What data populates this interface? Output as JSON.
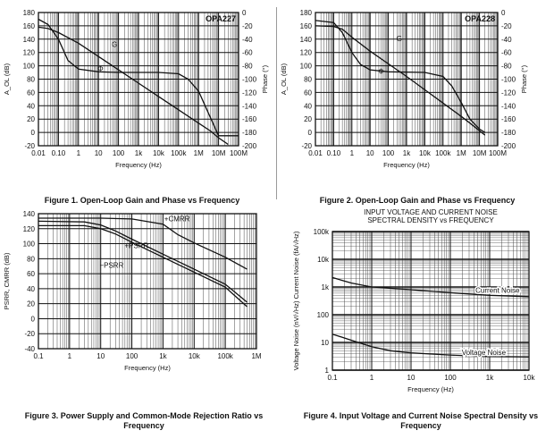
{
  "chart_data": [
    {
      "id": "fig1",
      "type": "line",
      "title": "OPA227",
      "caption": "Figure 1. Open-Loop Gain and Phase vs Frequency",
      "xlabel": "Frequency (Hz)",
      "ylabel": "A_OL (dB)",
      "ylabel_right": "Phase (°)",
      "xscale": "log",
      "xlim": [
        0.01,
        100000000
      ],
      "ylim": [
        -20,
        180
      ],
      "ylim_right": [
        -200,
        0
      ],
      "xticks": [
        {
          "v": 0.01,
          "label": "0.01"
        },
        {
          "v": 0.1,
          "label": "0.10"
        },
        {
          "v": 1,
          "label": "1"
        },
        {
          "v": 10,
          "label": "10"
        },
        {
          "v": 100,
          "label": "100"
        },
        {
          "v": 1000,
          "label": "1k"
        },
        {
          "v": 10000,
          "label": "10k"
        },
        {
          "v": 100000,
          "label": "100k"
        },
        {
          "v": 1000000,
          "label": "1M"
        },
        {
          "v": 10000000,
          "label": "10M"
        },
        {
          "v": 100000000,
          "label": "100M"
        }
      ],
      "yticks": [
        -20,
        0,
        20,
        40,
        60,
        80,
        100,
        120,
        140,
        160,
        180
      ],
      "yticks_right": [
        0,
        -20,
        -40,
        -60,
        -80,
        -100,
        -120,
        -140,
        -160,
        -180,
        -200
      ],
      "series": [
        {
          "name": "G",
          "axis": "left",
          "points": [
            [
              0.01,
              158
            ],
            [
              0.03,
              156
            ],
            [
              0.1,
              150
            ],
            [
              1,
              134
            ],
            [
              10,
              114
            ],
            [
              100,
              94
            ],
            [
              1000,
              74
            ],
            [
              10000,
              54
            ],
            [
              100000,
              34
            ],
            [
              1000000,
              14
            ],
            [
              4000000,
              2
            ],
            [
              10000000,
              -8
            ],
            [
              30000000,
              -18
            ]
          ]
        },
        {
          "name": "Φ",
          "axis": "right",
          "points": [
            [
              0.01,
              -10
            ],
            [
              0.03,
              -18
            ],
            [
              0.1,
              -40
            ],
            [
              0.3,
              -72
            ],
            [
              1,
              -85
            ],
            [
              10,
              -89
            ],
            [
              100,
              -90
            ],
            [
              10000,
              -90
            ],
            [
              100000,
              -92
            ],
            [
              300000,
              -100
            ],
            [
              1000000,
              -118
            ],
            [
              3000000,
              -150
            ],
            [
              10000000,
              -185
            ],
            [
              100000000,
              -185
            ]
          ]
        }
      ]
    },
    {
      "id": "fig2",
      "type": "line",
      "title": "OPA228",
      "caption": "Figure 2. Open-Loop Gain and Phase vs Frequency",
      "xlabel": "Frequency (Hz)",
      "ylabel": "A_OL (dB)",
      "ylabel_right": "Phase (°)",
      "xscale": "log",
      "xlim": [
        0.01,
        100000000
      ],
      "ylim": [
        -20,
        180
      ],
      "ylim_right": [
        -200,
        0
      ],
      "xticks": [
        {
          "v": 0.01,
          "label": "0.01"
        },
        {
          "v": 0.1,
          "label": "0.10"
        },
        {
          "v": 1,
          "label": "1"
        },
        {
          "v": 10,
          "label": "10"
        },
        {
          "v": 100,
          "label": "100"
        },
        {
          "v": 1000,
          "label": "1k"
        },
        {
          "v": 10000,
          "label": "10k"
        },
        {
          "v": 100000,
          "label": "100k"
        },
        {
          "v": 1000000,
          "label": "1M"
        },
        {
          "v": 10000000,
          "label": "10M"
        },
        {
          "v": 100000000,
          "label": "100M"
        }
      ],
      "yticks": [
        -20,
        0,
        20,
        40,
        60,
        80,
        100,
        120,
        140,
        160,
        180
      ],
      "yticks_right": [
        0,
        -20,
        -40,
        -60,
        -80,
        -100,
        -120,
        -140,
        -160,
        -180,
        -200
      ],
      "series": [
        {
          "name": "G",
          "axis": "left",
          "points": [
            [
              0.01,
              160
            ],
            [
              0.1,
              159
            ],
            [
              0.3,
              155
            ],
            [
              1,
              143
            ],
            [
              10,
              122
            ],
            [
              100,
              103
            ],
            [
              1000,
              84
            ],
            [
              10000,
              64
            ],
            [
              100000,
              44
            ],
            [
              1000000,
              24
            ],
            [
              3000000,
              14
            ],
            [
              20000000,
              -4
            ]
          ]
        },
        {
          "name": "Φ",
          "axis": "right",
          "points": [
            [
              0.01,
              -12
            ],
            [
              0.1,
              -15
            ],
            [
              0.3,
              -30
            ],
            [
              1,
              -60
            ],
            [
              3,
              -78
            ],
            [
              10,
              -86
            ],
            [
              100,
              -89
            ],
            [
              10000,
              -90
            ],
            [
              100000,
              -96
            ],
            [
              300000,
              -110
            ],
            [
              1000000,
              -135
            ],
            [
              3000000,
              -160
            ],
            [
              10000000,
              -175
            ],
            [
              20000000,
              -180
            ]
          ]
        }
      ]
    },
    {
      "id": "fig3",
      "type": "line",
      "caption": "Figure 3. Power Supply and Common-Mode Rejection Ratio vs Frequency",
      "xlabel": "Frequency (Hz)",
      "ylabel": "PSRR, CMRR (dB)",
      "xscale": "log",
      "xlim": [
        0.1,
        1000000
      ],
      "ylim": [
        -40,
        140
      ],
      "xticks": [
        {
          "v": 0.1,
          "label": "0.1"
        },
        {
          "v": 1,
          "label": "1"
        },
        {
          "v": 10,
          "label": "10"
        },
        {
          "v": 100,
          "label": "100"
        },
        {
          "v": 1000,
          "label": "1k"
        },
        {
          "v": 10000,
          "label": "10k"
        },
        {
          "v": 100000,
          "label": "100k"
        },
        {
          "v": 1000000,
          "label": "1M"
        }
      ],
      "yticks": [
        -40,
        -20,
        0,
        20,
        40,
        60,
        80,
        100,
        120,
        140
      ],
      "series": [
        {
          "name": "+CMRR",
          "points": [
            [
              0.1,
              134
            ],
            [
              1,
              134
            ],
            [
              10,
              134
            ],
            [
              100,
              133
            ],
            [
              1000,
              126
            ],
            [
              3000,
              112
            ],
            [
              10000,
              101
            ],
            [
              100000,
              82
            ],
            [
              500000,
              66
            ]
          ]
        },
        {
          "name": "+PSRR",
          "points": [
            [
              0.1,
              130
            ],
            [
              3,
              129
            ],
            [
              10,
              125
            ],
            [
              30,
              117
            ],
            [
              100,
              106
            ],
            [
              1000,
              86
            ],
            [
              10000,
              66
            ],
            [
              100000,
              46
            ],
            [
              500000,
              22
            ]
          ]
        },
        {
          "name": "−PSRR",
          "points": [
            [
              0.1,
              124
            ],
            [
              3,
              124
            ],
            [
              10,
              120
            ],
            [
              30,
              113
            ],
            [
              100,
              102
            ],
            [
              1000,
              82
            ],
            [
              10000,
              62
            ],
            [
              100000,
              42
            ],
            [
              500000,
              16
            ]
          ]
        }
      ]
    },
    {
      "id": "fig4",
      "type": "line",
      "title": "INPUT VOLTAGE AND CURRENT NOISE SPECTRAL DENSITY vs FREQUENCY",
      "caption": "Figure 4. Input Voltage and Current Noise Spectral Density vs Frequency",
      "xlabel": "Frequency (Hz)",
      "ylabel": "Voltage Noise (nV/√Hz) Current Noise (fA/√Hz)",
      "xscale": "log",
      "yscale": "log",
      "xlim": [
        0.1,
        10000
      ],
      "ylim": [
        1,
        100000
      ],
      "xticks": [
        {
          "v": 0.1,
          "label": "0.1"
        },
        {
          "v": 1,
          "label": "1"
        },
        {
          "v": 10,
          "label": "10"
        },
        {
          "v": 100,
          "label": "100"
        },
        {
          "v": 1000,
          "label": "1k"
        },
        {
          "v": 10000,
          "label": "10k"
        }
      ],
      "yticks": [
        {
          "v": 1,
          "label": "1"
        },
        {
          "v": 10,
          "label": "10"
        },
        {
          "v": 100,
          "label": "100"
        },
        {
          "v": 1000,
          "label": "1k"
        },
        {
          "v": 10000,
          "label": "10k"
        },
        {
          "v": 100000,
          "label": "100k"
        }
      ],
      "series": [
        {
          "name": "Current Noise",
          "points": [
            [
              0.1,
              2200
            ],
            [
              0.3,
              1400
            ],
            [
              1,
              1000
            ],
            [
              10,
              800
            ],
            [
              100,
              620
            ],
            [
              1000,
              500
            ],
            [
              10000,
              450
            ]
          ]
        },
        {
          "name": "Voltage Noise",
          "points": [
            [
              0.1,
              20
            ],
            [
              0.3,
              12
            ],
            [
              1,
              7
            ],
            [
              3,
              5
            ],
            [
              10,
              4.2
            ],
            [
              100,
              3.5
            ],
            [
              1000,
              3.1
            ],
            [
              10000,
              3
            ]
          ]
        }
      ]
    }
  ]
}
